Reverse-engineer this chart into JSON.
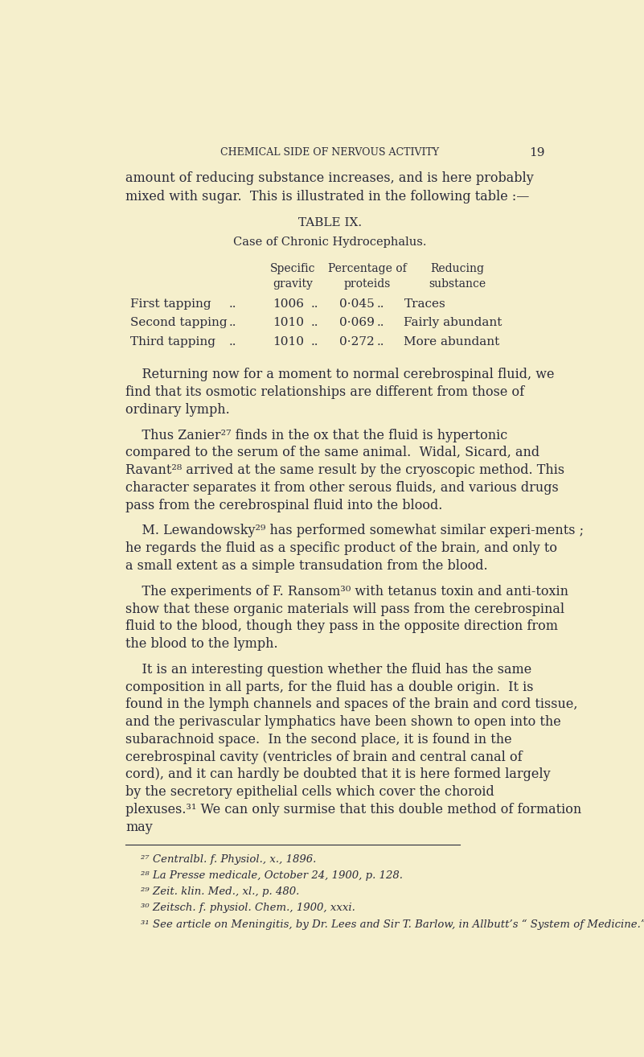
{
  "bg_color": "#f5efcc",
  "text_color": "#2a2a3a",
  "page_width": 8.01,
  "page_height": 13.14,
  "header_title": "CHEMICAL SIDE OF NERVOUS ACTIVITY",
  "page_number": "19",
  "intro_text": "amount of reducing substance increases, and is here probably\nmixed with sugar.  This is illustrated in the following table :—",
  "table_title": "TABLE IX.",
  "table_subtitle": "Case of Chronic Hydrocephalus.",
  "col_headers": [
    "Specific\ngravity",
    "Percentage of\nproteids",
    "Reducing\nsubstance"
  ],
  "table_rows": [
    [
      "First tapping",
      "..",
      "1006",
      "..",
      "0·045",
      "..",
      "Traces"
    ],
    [
      "Second tapping",
      "..",
      "1010",
      "..",
      "0·069",
      "..",
      "Fairly abundant"
    ],
    [
      "Third tapping",
      "..",
      "1010",
      "..",
      "0·272",
      "..",
      "More abundant"
    ]
  ],
  "body_paragraphs": [
    "    Returning now for a moment to normal cerebrospinal fluid, we find that its osmotic relationships are different from those of ordinary lymph.",
    "    Thus Zanier²⁷ finds in the ox that the fluid is hypertonic compared to the serum of the same animal.  Widal, Sicard, and Ravant²⁸ arrived at the same result by the cryoscopic method. This character separates it from other serous fluids, and various drugs pass from the cerebrospinal fluid into the blood.",
    "    M. Lewandowsky²⁹ has performed somewhat similar experi-ments ; he regards the fluid as a specific product of the brain, and only to a small extent as a simple transudation from the blood.",
    "    The experiments of F. Ransom³⁰ with tetanus toxin and anti-toxin show that these organic materials will pass from the cerebrospinal fluid to the blood, though they pass in the opposite direction from the blood to the lymph.",
    "    It is an interesting question whether the fluid has the same composition in all parts, for the fluid has a double origin.  It is found in the lymph channels and spaces of the brain and cord tissue, and the perivascular lymphatics have been shown to open into the subarachnoid space.  In the second place, it is found in the cerebrospinal cavity (ventricles of brain and central canal of cord), and it can hardly be doubted that it is here formed largely by the secretory epithelial cells which cover the choroid plexuses.³¹ We can only surmise that this double method of formation may"
  ],
  "footnotes": [
    "²⁷ Centralbl. f. Physiol., x., 1896.",
    "²⁸ La Presse medicale, October 24, 1900, p. 128.",
    "²⁹ Zeit. klin. Med., xl., p. 480.",
    "³⁰ Zeitsch. f. physiol. Chem., 1900, xxxi.",
    "³¹ See article on Meningitis, by Dr. Lees and Sir T. Barlow, in Allbutt’s “ System of Medicine.”"
  ]
}
